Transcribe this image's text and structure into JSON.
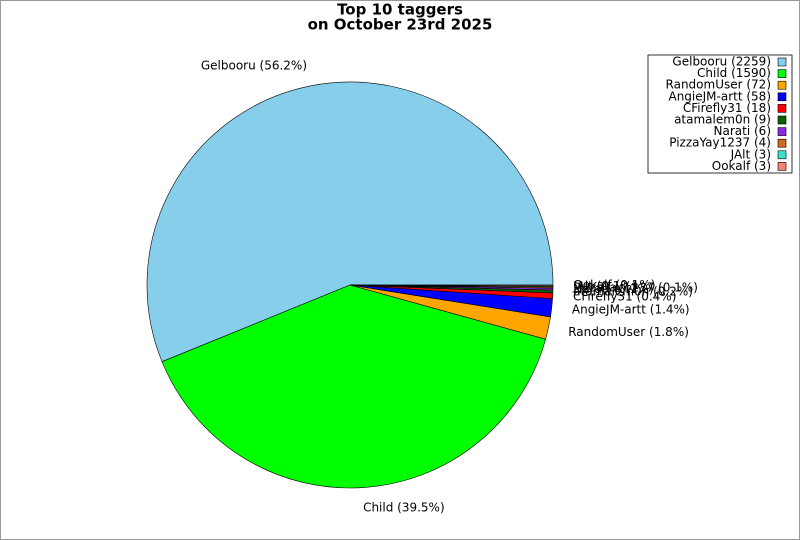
{
  "chart_data": {
    "type": "pie",
    "title": "Top 10 taggers",
    "subtitle": "on October 23rd 2025",
    "values": [
      2259,
      1590,
      72,
      58,
      18,
      9,
      6,
      4,
      3,
      3
    ],
    "value_labels": [
      "Gelbooru (56.2%)",
      "Child (39.5%)",
      "RandomUser (1.8%)",
      "AngieJM-artt (1.4%)",
      "CFirefly31 (0.4%)",
      "atamalem0n (0.2%)",
      "Narati (0.1%)",
      "PizzaYay1237 (0.1%)",
      "JAlt (0.1%)",
      "Ookalf (0.1%)"
    ],
    "legend": [
      "Gelbooru (2259)",
      "Child (1590)",
      "RandomUser (72)",
      "AngieJM-artt (58)",
      "CFirefly31 (18)",
      "atamalem0n (9)",
      "Narati (6)",
      "PizzaYay1237 (4)",
      "JAlt (3)",
      "Ookalf (3)"
    ],
    "colors": [
      "#87ceeb",
      "#00ff00",
      "#ffa500",
      "#0000ff",
      "#ff0000",
      "#006400",
      "#8a2be2",
      "#d2691e",
      "#40e0d0",
      "#fa8072"
    ],
    "legend_position": "upper right"
  }
}
